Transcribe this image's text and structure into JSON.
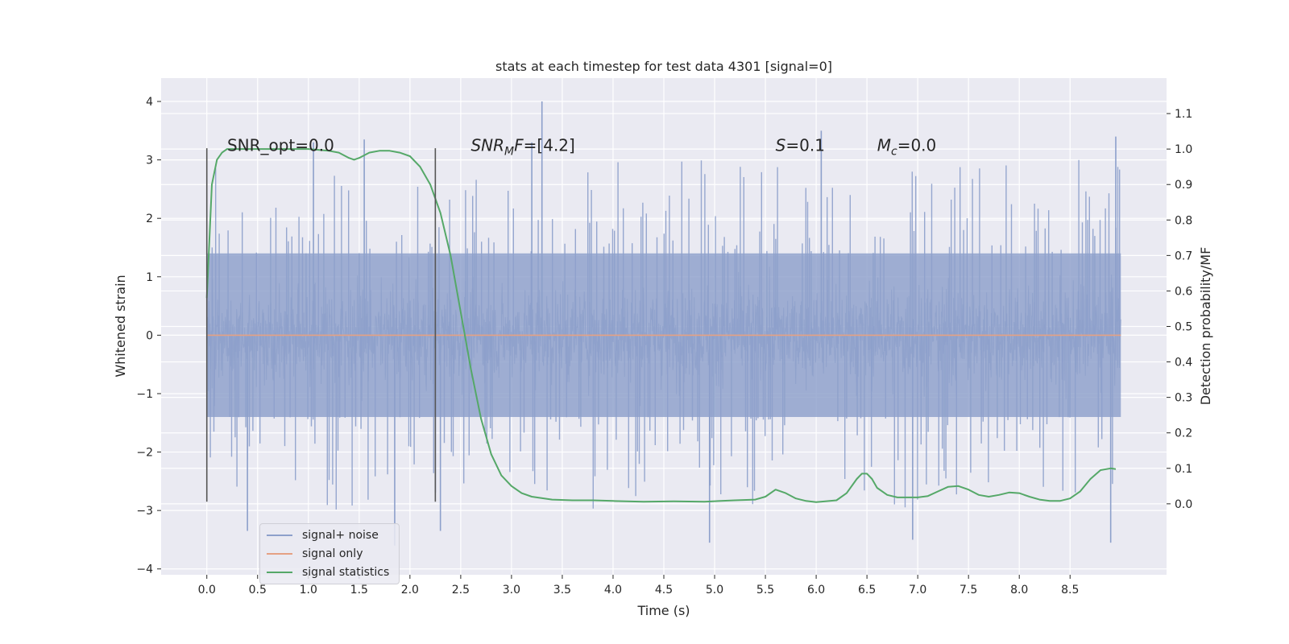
{
  "chart_data": {
    "type": "line",
    "title": "stats at each timestep for test data 4301 [signal=0]",
    "xlabel": "Time (s)",
    "ylabel": "Whitened strain",
    "y2label": "Detection probability/MF",
    "xlim": [
      -0.45,
      9.45
    ],
    "ylim": [
      -4.1,
      4.4
    ],
    "y2lim": [
      -0.2,
      1.2
    ],
    "xticks": [
      "0.0",
      "0.5",
      "1.0",
      "1.5",
      "2.0",
      "2.5",
      "3.0",
      "3.5",
      "4.0",
      "4.5",
      "5.0",
      "5.5",
      "6.0",
      "6.5",
      "7.0",
      "7.5",
      "8.0",
      "8.5"
    ],
    "xtick_values": [
      0,
      0.5,
      1,
      1.5,
      2,
      2.5,
      3,
      3.5,
      4,
      4.5,
      5,
      5.5,
      6,
      6.5,
      7,
      7.5,
      8,
      8.5
    ],
    "yticks": [
      "4",
      "3",
      "2",
      "1",
      "0",
      "−1",
      "−2",
      "−3",
      "−4"
    ],
    "ytick_values": [
      4,
      3,
      2,
      1,
      0,
      -1,
      -2,
      -3,
      -4
    ],
    "y2ticks": [
      "1.1",
      "1.0",
      "0.9",
      "0.8",
      "0.7",
      "0.6",
      "0.5",
      "0.4",
      "0.3",
      "0.2",
      "0.1",
      "0.0"
    ],
    "y2tick_values": [
      1.1,
      1.0,
      0.9,
      0.8,
      0.7,
      0.6,
      0.5,
      0.4,
      0.3,
      0.2,
      0.1,
      0.0
    ],
    "annotations": [
      {
        "text": "SNR_opt=0.0",
        "x": 0.2,
        "y": 3.15
      },
      {
        "text": "SNR_MF=[4.2]",
        "x": 2.6,
        "y": 3.15
      },
      {
        "text": "S=0.1",
        "x": 5.6,
        "y": 3.15
      },
      {
        "text": "M_c=0.0",
        "x": 6.6,
        "y": 3.15
      }
    ],
    "vlines": [
      {
        "x": 0.0,
        "ymin": -2.85,
        "ymax": 3.2
      },
      {
        "x": 2.25,
        "ymin": -2.85,
        "ymax": 3.2
      }
    ],
    "series": [
      {
        "name": "signal+ noise",
        "color": "#8da0cb",
        "x_range": [
          0,
          9.0
        ],
        "band": {
          "lower": -1.4,
          "upper": 1.4
        },
        "spikes": [
          {
            "x": 3.3,
            "y": 4.0
          },
          {
            "x": 1.85,
            "y": -3.6
          },
          {
            "x": 2.3,
            "y": -3.35
          },
          {
            "x": 0.4,
            "y": -3.35
          },
          {
            "x": 4.95,
            "y": -3.55
          },
          {
            "x": 6.95,
            "y": -3.5
          },
          {
            "x": 8.9,
            "y": -3.55
          },
          {
            "x": 8.95,
            "y": 3.4
          },
          {
            "x": 6.05,
            "y": 3.5
          },
          {
            "x": 3.2,
            "y": 3.3
          },
          {
            "x": 1.05,
            "y": 3.3
          },
          {
            "x": 1.55,
            "y": 3.35
          }
        ]
      },
      {
        "name": "signal only",
        "color": "#e5a183",
        "x": [
          0,
          9.0
        ],
        "y": [
          0,
          0
        ]
      },
      {
        "name": "signal statistics",
        "color": "#55a868",
        "axis": "right",
        "x": [
          0.0,
          0.05,
          0.1,
          0.15,
          0.2,
          0.3,
          0.5,
          0.8,
          1.0,
          1.2,
          1.3,
          1.4,
          1.45,
          1.5,
          1.6,
          1.7,
          1.8,
          1.9,
          2.0,
          2.1,
          2.2,
          2.3,
          2.4,
          2.5,
          2.6,
          2.7,
          2.8,
          2.9,
          3.0,
          3.1,
          3.2,
          3.4,
          3.6,
          3.8,
          4.0,
          4.3,
          4.6,
          4.9,
          5.2,
          5.4,
          5.5,
          5.6,
          5.7,
          5.8,
          5.9,
          6.0,
          6.2,
          6.3,
          6.4,
          6.45,
          6.5,
          6.55,
          6.6,
          6.7,
          6.8,
          7.0,
          7.1,
          7.2,
          7.3,
          7.4,
          7.5,
          7.6,
          7.7,
          7.8,
          7.9,
          8.0,
          8.1,
          8.2,
          8.3,
          8.4,
          8.5,
          8.6,
          8.7,
          8.8,
          8.9,
          8.95
        ],
        "y": [
          0.58,
          0.9,
          0.97,
          0.99,
          1.0,
          1.0,
          1.0,
          1.0,
          1.0,
          0.995,
          0.99,
          0.975,
          0.97,
          0.975,
          0.99,
          0.995,
          0.995,
          0.99,
          0.98,
          0.95,
          0.9,
          0.82,
          0.7,
          0.54,
          0.38,
          0.24,
          0.14,
          0.08,
          0.05,
          0.03,
          0.02,
          0.012,
          0.01,
          0.01,
          0.008,
          0.006,
          0.007,
          0.006,
          0.01,
          0.012,
          0.02,
          0.04,
          0.03,
          0.015,
          0.008,
          0.005,
          0.01,
          0.03,
          0.07,
          0.085,
          0.085,
          0.07,
          0.045,
          0.025,
          0.018,
          0.018,
          0.022,
          0.035,
          0.048,
          0.05,
          0.04,
          0.025,
          0.02,
          0.025,
          0.032,
          0.03,
          0.02,
          0.012,
          0.008,
          0.008,
          0.015,
          0.035,
          0.07,
          0.095,
          0.1,
          0.098
        ]
      }
    ],
    "legend": {
      "position": "lower-left",
      "entries": [
        "signal+ noise",
        "signal only",
        "signal statistics"
      ]
    }
  }
}
